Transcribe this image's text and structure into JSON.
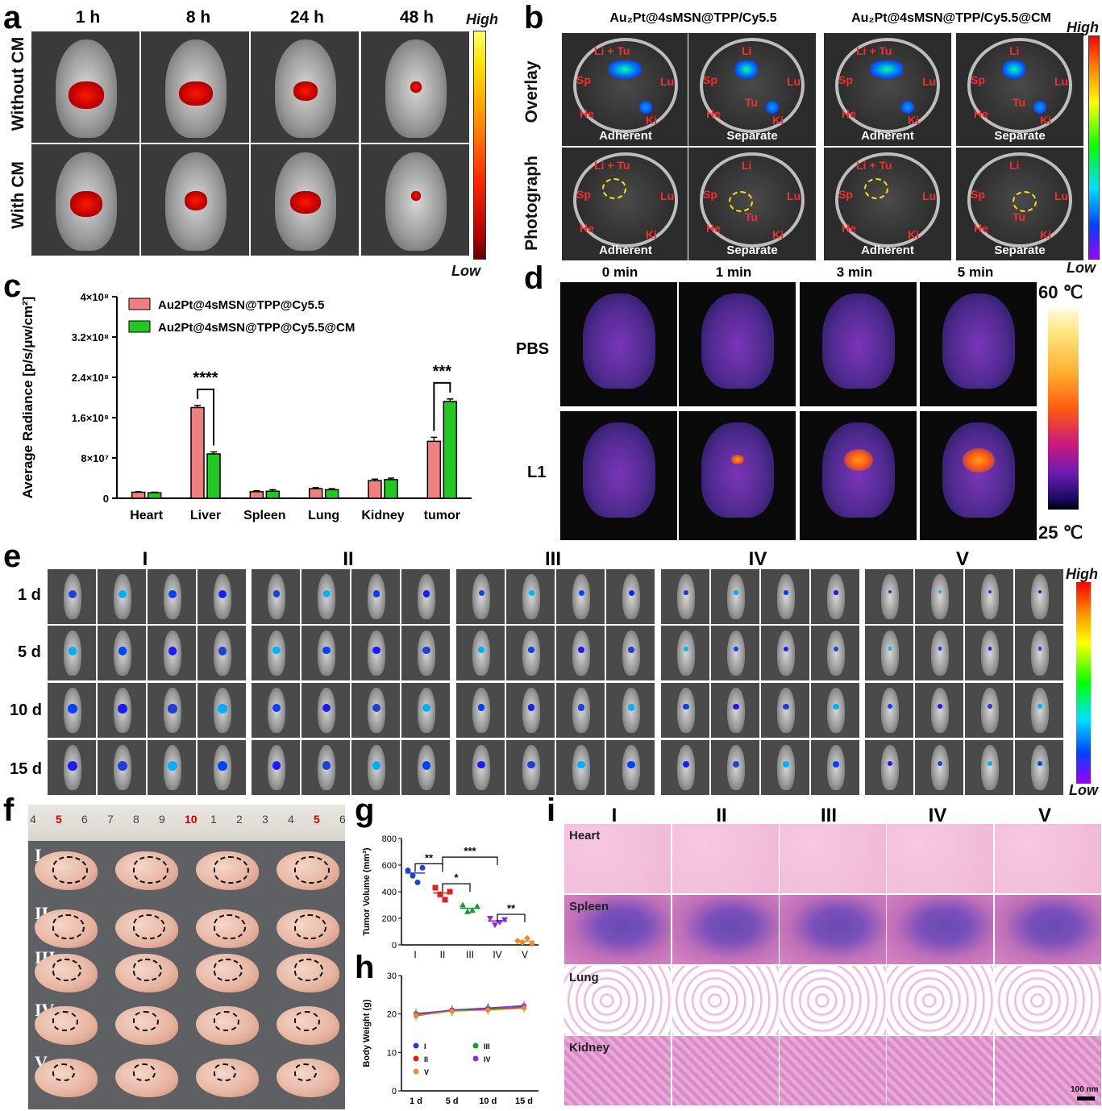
{
  "panels": {
    "a": "a",
    "b": "b",
    "c": "c",
    "d": "d",
    "e": "e",
    "f": "f",
    "g": "g",
    "h": "h",
    "i": "i"
  },
  "panel_a": {
    "times": [
      "1 h",
      "8 h",
      "24 h",
      "48 h"
    ],
    "rows": [
      "Without CM",
      "With CM"
    ],
    "scale_high": "High",
    "scale_low": "Low"
  },
  "panel_b": {
    "col_groups": [
      "Au₂Pt@4sMSN@TPP/Cy5.5",
      "Au₂Pt@4sMSN@TPP/Cy5.5@CM"
    ],
    "rows": [
      "Overlay",
      "Photograph"
    ],
    "captions": [
      "Adherent",
      "Separate",
      "Adherent",
      "Separate"
    ],
    "organs": {
      "litu": "Li + Tu",
      "li": "Li",
      "tu": "Tu",
      "sp": "Sp",
      "lu": "Lu",
      "he": "He",
      "ki": "Ki"
    },
    "scale_high": "High",
    "scale_low": "Low"
  },
  "panel_d": {
    "times": [
      "0 min",
      "1 min",
      "3 min",
      "5 min"
    ],
    "rows": [
      "PBS",
      "L1"
    ],
    "scale_high": "60 ℃",
    "scale_low": "25 ℃"
  },
  "panel_e": {
    "groups": [
      "I",
      "II",
      "III",
      "IV",
      "V"
    ],
    "days": [
      "1 d",
      "5 d",
      "10 d",
      "15 d"
    ],
    "scale_high": "High",
    "scale_low": "Low"
  },
  "panel_f": {
    "rows": [
      "I",
      "II",
      "III",
      "IV",
      "V"
    ],
    "ruler": [
      "4",
      "5",
      "6",
      "7",
      "8",
      "9",
      "10",
      "1",
      "2",
      "3",
      "4",
      "5",
      "6"
    ]
  },
  "panel_i": {
    "groups": [
      "I",
      "II",
      "III",
      "IV",
      "V"
    ],
    "tissues": [
      "Heart",
      "Spleen",
      "Lung",
      "Kidney"
    ],
    "scale_bar": "100 nm"
  },
  "colors": {
    "pink": "#f08080",
    "green": "#22c822",
    "blue": "#1f3fd6",
    "red": "#e02020",
    "darkgreen": "#1a9a3a",
    "purple": "#8a2be2",
    "orange": "#f08a24"
  },
  "chart_data": [
    {
      "id": "c",
      "type": "bar",
      "title": "",
      "ylabel": "Average Radiance [p/s/μw/cm²]",
      "xlabel": "",
      "categories": [
        "Heart",
        "Liver",
        "Spleen",
        "Lung",
        "Kidney",
        "tumor"
      ],
      "yticks": [
        "0",
        "8×10⁷",
        "1.6×10⁸",
        "2.4×10⁸",
        "3.2×10⁸",
        "4×10⁸"
      ],
      "ylim": [
        0,
        400000000
      ],
      "series": [
        {
          "name": "Au2Pt@4sMSN@TPP@Cy5.5",
          "values": [
            12000000,
            180000000,
            13000000,
            19000000,
            35000000,
            113000000
          ],
          "errors": [
            1000000,
            4000000,
            2000000,
            2000000,
            3000000,
            8000000
          ]
        },
        {
          "name": "Au2Pt@4sMSN@TPP@Cy5.5@CM",
          "values": [
            11000000,
            88000000,
            14000000,
            17000000,
            37000000,
            192000000
          ],
          "errors": [
            1000000,
            4000000,
            3000000,
            2000000,
            3000000,
            5000000
          ]
        }
      ],
      "significance": [
        {
          "category": "Liver",
          "label": "****"
        },
        {
          "category": "tumor",
          "label": "***"
        }
      ],
      "legend_position": "top-left"
    },
    {
      "id": "g",
      "type": "scatter",
      "ylabel": "Tumor Volume (mm³)",
      "categories": [
        "I",
        "II",
        "III",
        "IV",
        "V"
      ],
      "yticks": [
        "0",
        "200",
        "400",
        "600",
        "800"
      ],
      "ylim": [
        0,
        800
      ],
      "points": [
        [
          560,
          520,
          470,
          580
        ],
        [
          430,
          380,
          340,
          400
        ],
        [
          300,
          250,
          260,
          290
        ],
        [
          200,
          150,
          170,
          190
        ],
        [
          30,
          20,
          50,
          10
        ]
      ],
      "means": [
        540,
        390,
        275,
        180,
        28
      ],
      "significance": [
        {
          "from": "I",
          "to": "II",
          "label": "**"
        },
        {
          "from": "II",
          "to": "III",
          "label": "*"
        },
        {
          "from": "II",
          "to": "IV",
          "label": "***"
        },
        {
          "from": "IV",
          "to": "V",
          "label": "**"
        }
      ]
    },
    {
      "id": "h",
      "type": "line",
      "ylabel": "Body Weight (g)",
      "categories": [
        "1 d",
        "5 d",
        "10 d",
        "15 d"
      ],
      "yticks": [
        "0",
        "10",
        "20",
        "30"
      ],
      "ylim": [
        0,
        30
      ],
      "series": [
        {
          "name": "I",
          "values": [
            19.5,
            20.8,
            21.2,
            22.0
          ]
        },
        {
          "name": "II",
          "values": [
            19.8,
            21.0,
            21.3,
            21.6
          ]
        },
        {
          "name": "III",
          "values": [
            20.2,
            20.9,
            21.5,
            21.8
          ]
        },
        {
          "name": "IV",
          "values": [
            19.9,
            21.1,
            21.6,
            22.2
          ]
        },
        {
          "name": "V",
          "values": [
            19.6,
            20.7,
            21.0,
            21.5
          ]
        }
      ]
    }
  ]
}
